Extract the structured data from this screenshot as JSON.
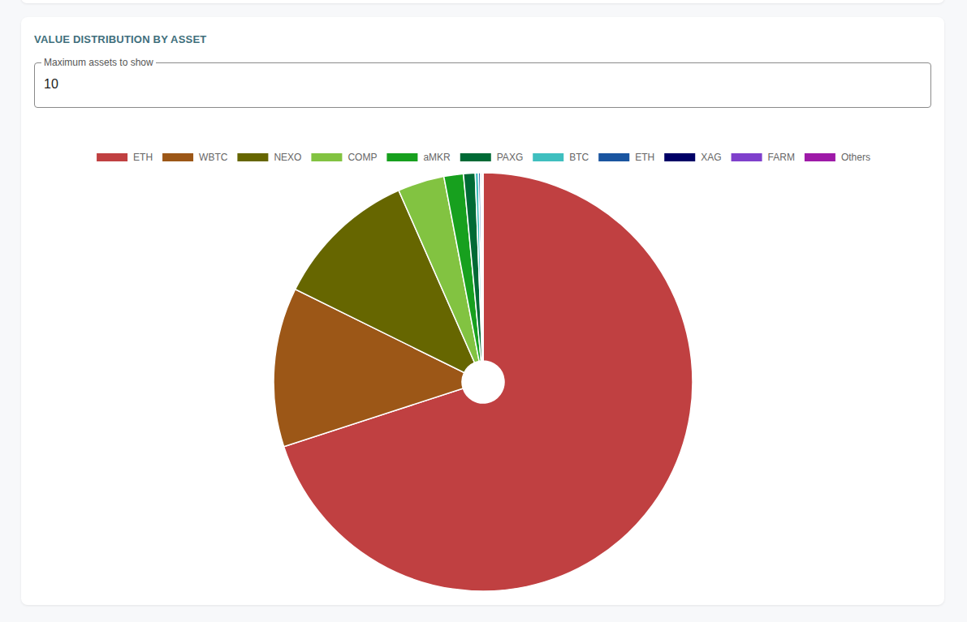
{
  "chart_data": {
    "type": "pie",
    "title": "VALUE DISTRIBUTION BY ASSET",
    "categories": [
      "ETH",
      "WBTC",
      "NEXO",
      "COMP",
      "aMKR",
      "PAXG",
      "BTC",
      "ETH",
      "XAG",
      "FARM",
      "Others"
    ],
    "values": [
      70.0,
      12.3,
      11.1,
      3.6,
      1.5,
      0.9,
      0.25,
      0.15,
      0.1,
      0.05,
      0.05
    ],
    "colors": [
      "#c04041",
      "#9c5717",
      "#666600",
      "#82c341",
      "#17a01e",
      "#006a35",
      "#3fbfbf",
      "#1a55a0",
      "#000066",
      "#7f40cc",
      "#9e1aa8"
    ],
    "legend": "top"
  },
  "controls": {
    "label": "Maximum assets to show",
    "value": 10
  }
}
